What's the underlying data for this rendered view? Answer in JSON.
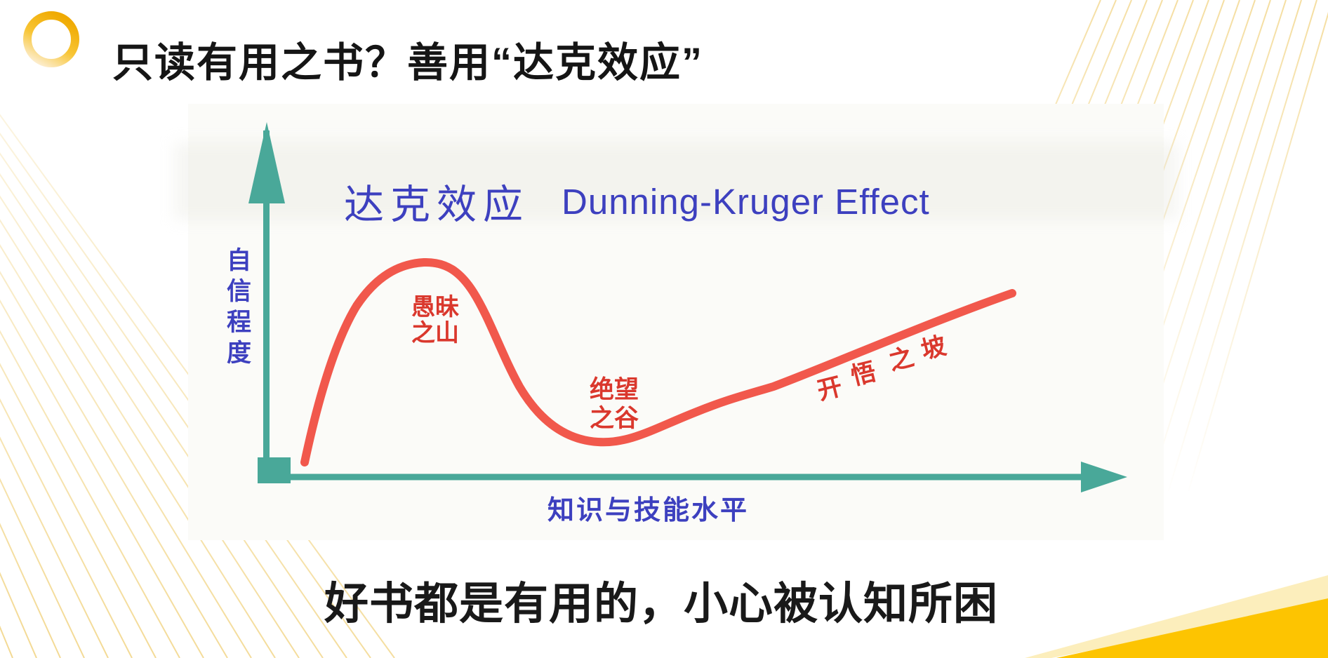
{
  "slide": {
    "header_title": "只读有用之书？善用“达克效应”",
    "footer_text": "好书都是有用的，小心被认知所困"
  },
  "chart": {
    "title_zh": "达克效应",
    "title_en": "Dunning-Kruger Effect",
    "y_axis_label": "自信程度",
    "x_axis_label": "知识与技能水平",
    "annotations": {
      "peak_line1": "愚昧",
      "peak_line2": "之山",
      "valley_line1": "绝望",
      "valley_line2": "之谷",
      "slope_chars": [
        "开",
        "悟",
        "之",
        "坡"
      ]
    }
  },
  "colors": {
    "axis_teal": "#49a899",
    "curve_red": "#f1584c",
    "annotation_red": "#da382d",
    "chart_text_blue": "#3d40bf",
    "title_black": "#151515",
    "brand_gold": "#fdc401",
    "ray_yellow": "#eec964"
  },
  "chart_data": {
    "type": "line",
    "title": "达克效应 Dunning-Kruger Effect",
    "xlabel": "知识与技能水平",
    "ylabel": "自信程度",
    "x_range": [
      0,
      100
    ],
    "y_range": [
      0,
      100
    ],
    "grid": false,
    "legend": "none",
    "axes_ticks": "none (conceptual hand-drawn curve, no numeric ticks)",
    "series": [
      {
        "name": "confidence vs knowledge/skill",
        "color": "#f1584c",
        "x": [
          0,
          2,
          4,
          7,
          10,
          13,
          16,
          19,
          22,
          25,
          28,
          31,
          34,
          38,
          42,
          46,
          51,
          59,
          68,
          78,
          89,
          100
        ],
        "y": [
          6,
          14,
          26,
          44,
          62,
          76,
          84,
          87,
          84,
          74,
          58,
          42,
          28,
          19,
          15,
          17,
          22,
          29,
          38,
          49,
          62,
          75
        ]
      }
    ],
    "annotations": [
      {
        "text": "愚昧之山",
        "meaning": "Mount Stupid peak label",
        "x": 19,
        "y": 68
      },
      {
        "text": "绝望之谷",
        "meaning": "Valley of Despair label",
        "x": 42,
        "y": 30
      },
      {
        "text": "开悟之坡",
        "meaning": "Slope of Enlightenment label",
        "x": 78,
        "y": 46
      }
    ]
  }
}
